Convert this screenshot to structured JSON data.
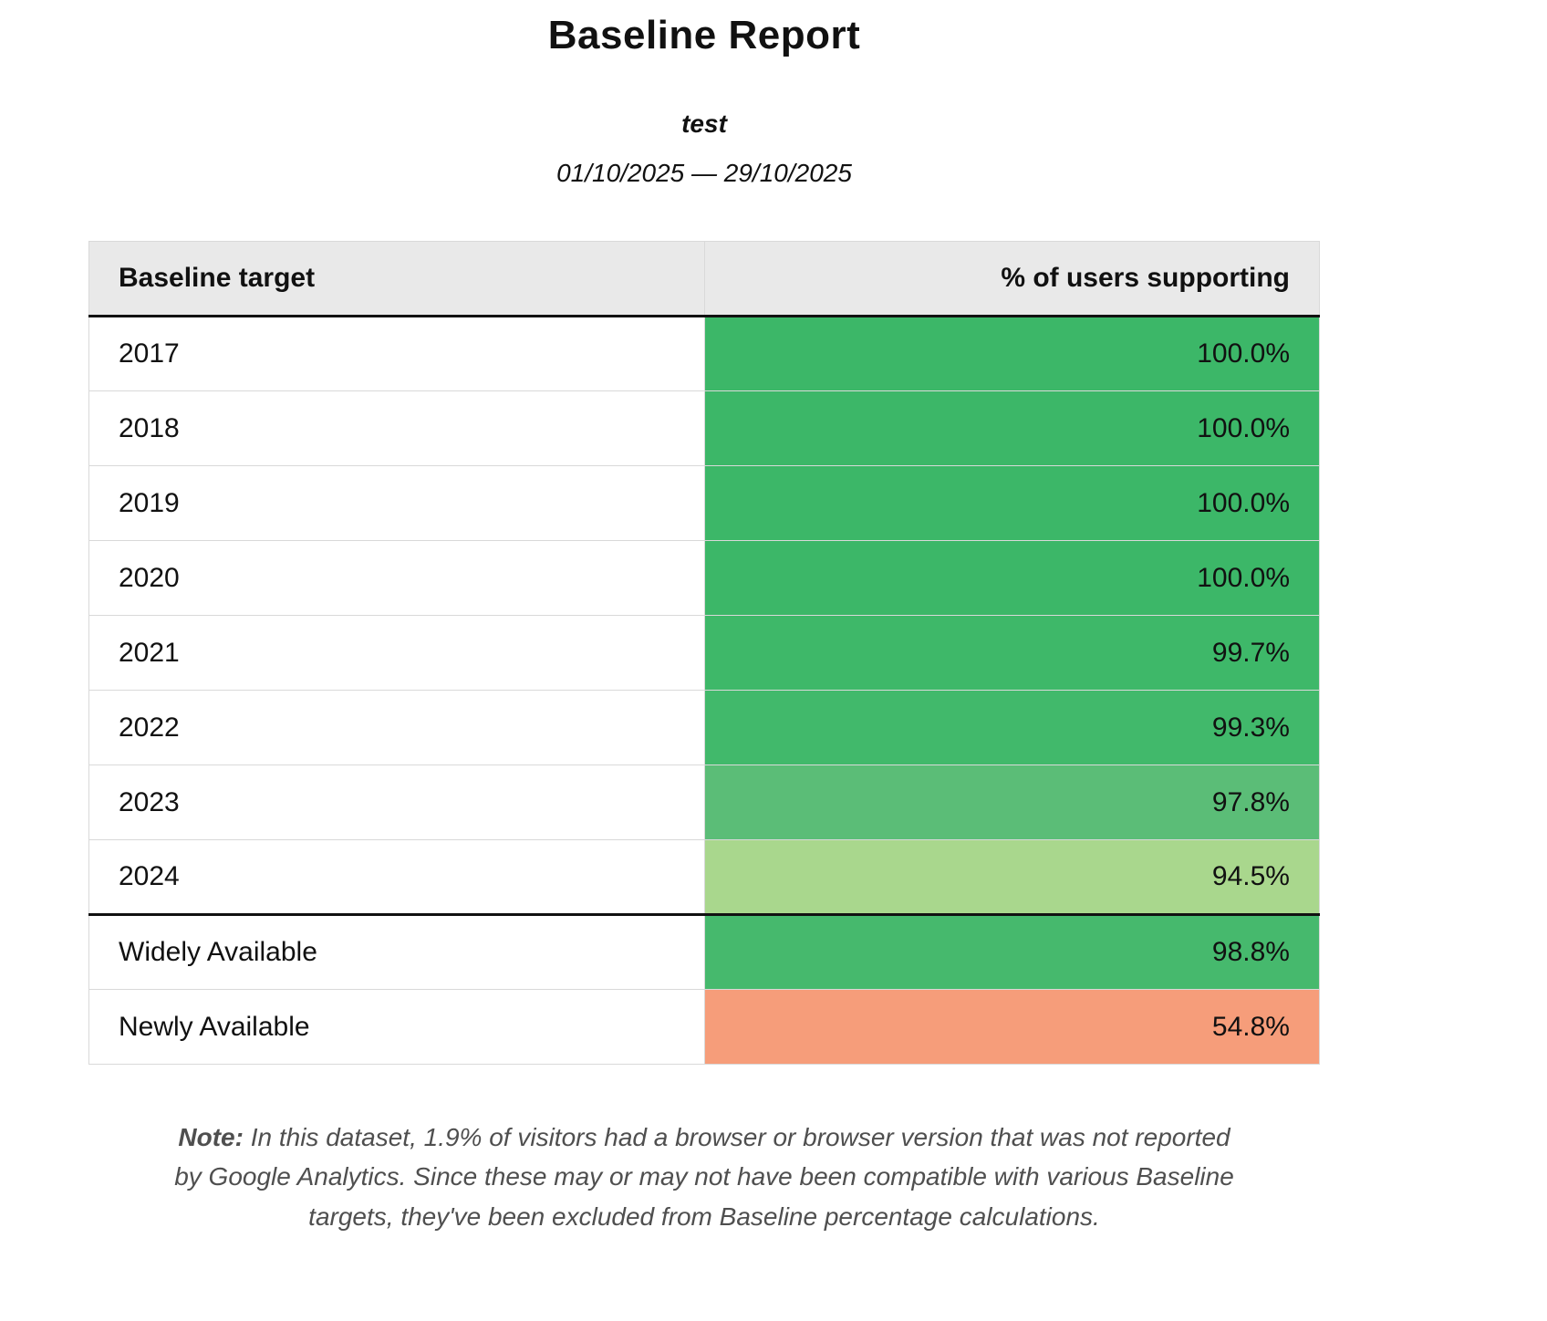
{
  "header": {
    "title": "Baseline Report",
    "subtitle": "test",
    "date_range": "01/10/2025 — 29/10/2025"
  },
  "table": {
    "columns": [
      "Baseline target",
      "% of users supporting"
    ],
    "rows": [
      {
        "label": "2017",
        "value": "100.0%",
        "color": "#3cb768"
      },
      {
        "label": "2018",
        "value": "100.0%",
        "color": "#3cb768"
      },
      {
        "label": "2019",
        "value": "100.0%",
        "color": "#3cb768"
      },
      {
        "label": "2020",
        "value": "100.0%",
        "color": "#3cb768"
      },
      {
        "label": "2021",
        "value": "99.7%",
        "color": "#3eb869"
      },
      {
        "label": "2022",
        "value": "99.3%",
        "color": "#41b96b"
      },
      {
        "label": "2023",
        "value": "97.8%",
        "color": "#5bbd77"
      },
      {
        "label": "2024",
        "value": "94.5%",
        "color": "#a9d78d"
      },
      {
        "label": "Widely Available",
        "value": "98.8%",
        "color": "#46b96d"
      },
      {
        "label": "Newly Available",
        "value": "54.8%",
        "color": "#f69d7a"
      }
    ]
  },
  "note": {
    "label": "Note:",
    "text": " In this dataset, 1.9% of visitors had a browser or browser version that was not reported by Google Analytics. Since these may or may not have been compatible with various Baseline targets, they've been excluded from Baseline percentage calculations."
  },
  "chart_data": {
    "type": "table",
    "title": "Baseline Report",
    "categories": [
      "2017",
      "2018",
      "2019",
      "2020",
      "2021",
      "2022",
      "2023",
      "2024",
      "Widely Available",
      "Newly Available"
    ],
    "values": [
      100.0,
      100.0,
      100.0,
      100.0,
      99.7,
      99.3,
      97.8,
      94.5,
      98.8,
      54.8
    ],
    "ylabel": "% of users supporting"
  }
}
